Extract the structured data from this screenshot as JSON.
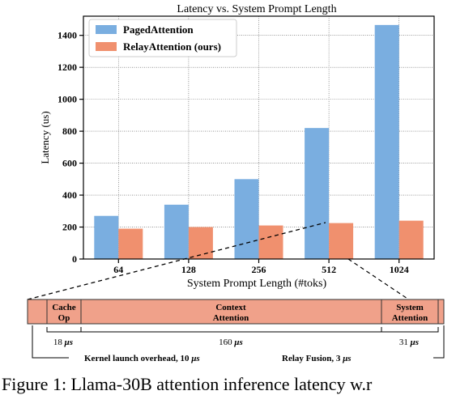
{
  "chart_data": {
    "type": "bar",
    "title": "Latency vs. System Prompt Length",
    "xlabel": "System Prompt Length (#toks)",
    "ylabel": "Latency (us)",
    "categories": [
      "64",
      "128",
      "256",
      "512",
      "1024"
    ],
    "ylim": [
      0,
      1520
    ],
    "yticks": [
      0,
      200,
      400,
      600,
      800,
      1000,
      1200,
      1400
    ],
    "grid": true,
    "legend_position": "top-left",
    "series": [
      {
        "name": "PagedAttention",
        "color": "#7aaee0",
        "values": [
          270,
          340,
          500,
          820,
          1465
        ]
      },
      {
        "name": "RelayAttention (ours)",
        "color": "#f0906e",
        "values": [
          190,
          200,
          210,
          225,
          240
        ]
      }
    ]
  },
  "breakdown": {
    "segments": [
      {
        "label_line1": "Cache",
        "label_line2": "Op",
        "time": "18",
        "color": "#f0a18a"
      },
      {
        "label_line1": "Context",
        "label_line2": "Attention",
        "time": "160",
        "color": "#f0a18a"
      },
      {
        "label_line1": "System",
        "label_line2": "Attention",
        "time": "31",
        "color": "#f0a18a"
      }
    ],
    "unit": "μs",
    "annotations": [
      {
        "text": "Kernel launch overhead, 10 ",
        "unit": "μs"
      },
      {
        "text": "Relay Fusion, 3 ",
        "unit": "μs"
      }
    ]
  },
  "caption": "Figure 1: Llama-30B attention inference latency w.r"
}
